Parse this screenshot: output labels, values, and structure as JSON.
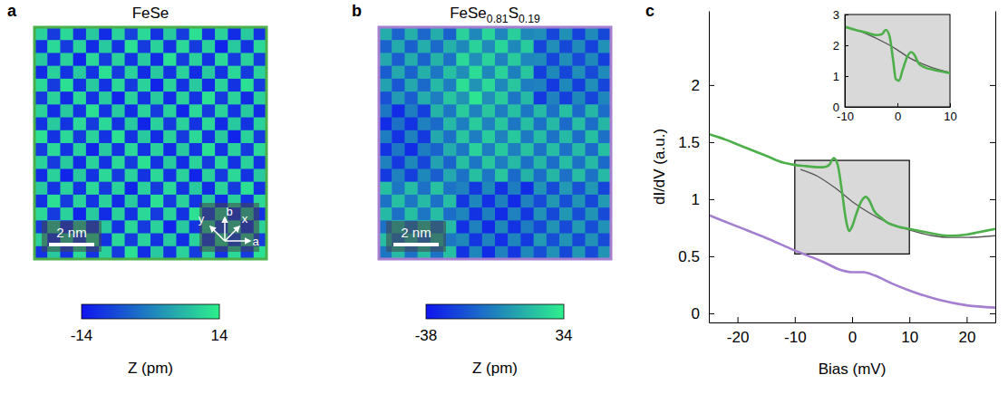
{
  "chart_data": [
    {
      "panel": "a",
      "type": "heatmap",
      "title": "FeSe",
      "color": "#4daf4a",
      "tick_labels": false,
      "scale_bar": "2 nm",
      "lattice_axes": [
        "x",
        "y",
        "a",
        "b"
      ],
      "colorbar": {
        "label": "Z (pm)",
        "range": [
          -14,
          14
        ],
        "ticks": [
          -14,
          14
        ]
      },
      "cells": [
        [
          10,
          -9,
          11,
          -10,
          9,
          -11,
          10,
          -8,
          11,
          -10,
          9,
          -9,
          12,
          -10,
          10,
          -11,
          9,
          -10
        ],
        [
          -10,
          11,
          -9,
          10,
          -11,
          9,
          -10,
          12,
          -9,
          10,
          -10,
          11,
          -9,
          10,
          -12,
          9,
          -10,
          11
        ],
        [
          9,
          -10,
          10,
          -12,
          11,
          -9,
          10,
          -10,
          9,
          -11,
          12,
          -9,
          10,
          -10,
          11,
          -9,
          10,
          -9
        ],
        [
          -11,
          10,
          -10,
          9,
          -10,
          12,
          -9,
          10,
          -11,
          9,
          -10,
          10,
          -11,
          9,
          -10,
          11,
          -9,
          10
        ],
        [
          11,
          -9,
          12,
          -10,
          9,
          -10,
          11,
          -9,
          10,
          -12,
          10,
          -10,
          9,
          -11,
          10,
          -10,
          12,
          -9
        ],
        [
          -9,
          10,
          -11,
          11,
          -10,
          9,
          -12,
          10,
          -10,
          9,
          -11,
          10,
          -10,
          12,
          -9,
          10,
          -11,
          10
        ],
        [
          10,
          -11,
          9,
          -10,
          12,
          -10,
          9,
          -11,
          10,
          -9,
          10,
          -12,
          11,
          -9,
          10,
          -10,
          9,
          -11
        ],
        [
          -10,
          9,
          -10,
          11,
          -9,
          11,
          -10,
          9,
          -12,
          10,
          -9,
          10,
          -10,
          11,
          -11,
          9,
          -10,
          10
        ],
        [
          12,
          -10,
          11,
          -9,
          10,
          -10,
          12,
          -10,
          9,
          -11,
          10,
          -9,
          11,
          -10,
          9,
          -12,
          10,
          -9
        ],
        [
          -9,
          11,
          -10,
          10,
          -12,
          9,
          -10,
          11,
          -10,
          10,
          -11,
          9,
          -10,
          12,
          -10,
          10,
          -9,
          11
        ],
        [
          10,
          -9,
          9,
          -11,
          10,
          -10,
          11,
          -9,
          12,
          -10,
          9,
          -11,
          10,
          -9,
          11,
          -10,
          10,
          -10
        ],
        [
          -11,
          10,
          -12,
          9,
          -10,
          11,
          -9,
          10,
          -10,
          11,
          -10,
          10,
          -12,
          10,
          -9,
          11,
          -10,
          9
        ],
        [
          9,
          -10,
          10,
          -10,
          11,
          -9,
          10,
          -12,
          10,
          -9,
          11,
          -10,
          9,
          -11,
          10,
          -9,
          12,
          -10
        ],
        [
          -10,
          12,
          -9,
          10,
          -10,
          10,
          -11,
          9,
          -10,
          12,
          -9,
          10,
          -10,
          9,
          -11,
          10,
          -10,
          11
        ],
        [
          11,
          -9,
          10,
          -12,
          9,
          -11,
          10,
          -10,
          11,
          -9,
          10,
          -10,
          12,
          -9,
          10,
          -11,
          9,
          -10
        ],
        [
          -9,
          10,
          -11,
          10,
          -10,
          9,
          -10,
          11,
          -9,
          10,
          -12,
          9,
          -10,
          11,
          -9,
          10,
          -11,
          10
        ],
        [
          10,
          -11,
          9,
          -9,
          12,
          -10,
          11,
          -9,
          10,
          -10,
          9,
          -11,
          10,
          -10,
          12,
          -9,
          10,
          -9
        ],
        [
          -10,
          9,
          -10,
          11,
          -10,
          10,
          -9,
          12,
          -11,
          9,
          -10,
          10,
          -9,
          10,
          -10,
          11,
          -9,
          12
        ]
      ]
    },
    {
      "panel": "b",
      "type": "heatmap",
      "title": "FeSe0.81S0.19",
      "color": "#a57fcf",
      "tick_labels": false,
      "scale_bar": "2 nm",
      "colorbar": {
        "label": "Z (pm)",
        "range": [
          -38,
          34
        ],
        "ticks": [
          -38,
          34
        ]
      },
      "cells": [
        [
          12,
          -12,
          13,
          -11,
          12,
          -13,
          24,
          0,
          25,
          -1,
          23,
          0,
          2,
          -22,
          3,
          -23,
          1,
          -21
        ],
        [
          -12,
          11,
          -13,
          12,
          -10,
          13,
          0,
          24,
          1,
          25,
          0,
          22,
          -22,
          2,
          -21,
          1,
          -23,
          3
        ],
        [
          10,
          -14,
          12,
          -12,
          14,
          -8,
          26,
          2,
          24,
          -2,
          22,
          -1,
          1,
          -22,
          2,
          -20,
          0,
          -24
        ],
        [
          -14,
          10,
          -12,
          13,
          -6,
          18,
          2,
          27,
          0,
          24,
          -3,
          20,
          -24,
          0,
          -22,
          2,
          -20,
          1
        ],
        [
          8,
          -16,
          10,
          -10,
          16,
          -4,
          28,
          4,
          26,
          0,
          20,
          -4,
          -2,
          -26,
          0,
          -24,
          2,
          -22
        ],
        [
          -18,
          6,
          -14,
          12,
          -4,
          20,
          4,
          30,
          2,
          22,
          -6,
          16,
          -26,
          -2,
          -24,
          0,
          -22,
          -1
        ],
        [
          -6,
          -30,
          -4,
          -24,
          14,
          -6,
          22,
          -2,
          20,
          -4,
          18,
          -6,
          16,
          -8,
          18,
          -10,
          15,
          -9
        ],
        [
          -30,
          -8,
          -28,
          -2,
          -10,
          16,
          -4,
          22,
          -2,
          20,
          -6,
          18,
          -8,
          16,
          -10,
          17,
          -9,
          15
        ],
        [
          -4,
          -28,
          -2,
          -26,
          10,
          -8,
          20,
          -4,
          22,
          -2,
          21,
          -5,
          17,
          -7,
          16,
          -9,
          18,
          -8
        ],
        [
          -28,
          -6,
          -30,
          -4,
          -12,
          12,
          -6,
          24,
          -4,
          21,
          -3,
          19,
          -7,
          17,
          -8,
          16,
          -10,
          18
        ],
        [
          -2,
          -26,
          0,
          -22,
          8,
          -12,
          18,
          -6,
          20,
          -4,
          16,
          -8,
          15,
          -9,
          17,
          -7,
          16,
          -10
        ],
        [
          -26,
          -2,
          -24,
          0,
          -14,
          10,
          -8,
          18,
          -6,
          20,
          -10,
          14,
          -9,
          15,
          -8,
          17,
          -7,
          16
        ],
        [
          18,
          -6,
          17,
          -8,
          19,
          -7,
          -2,
          -26,
          0,
          -28,
          -4,
          -30,
          4,
          -20,
          6,
          -18,
          5,
          -22
        ],
        [
          -7,
          18,
          -6,
          16,
          -8,
          17,
          -27,
          -1,
          -29,
          -3,
          -31,
          -2,
          -20,
          5,
          -19,
          4,
          -21,
          6
        ],
        [
          16,
          -8,
          18,
          -6,
          17,
          -9,
          -1,
          -28,
          -3,
          -30,
          -2,
          -27,
          3,
          -21,
          5,
          -19,
          4,
          -20
        ],
        [
          -8,
          17,
          -7,
          19,
          -6,
          16,
          -29,
          -2,
          -31,
          0,
          -28,
          -4,
          -21,
          4,
          -20,
          6,
          -19,
          3
        ],
        [
          17,
          -7,
          16,
          -9,
          18,
          -6,
          0,
          -27,
          -2,
          -29,
          -1,
          -26,
          6,
          -19,
          4,
          -21,
          3,
          -20
        ],
        [
          -6,
          16,
          -8,
          17,
          -7,
          18,
          -28,
          -1,
          -30,
          -2,
          -27,
          0,
          -19,
          3,
          -21,
          5,
          -20,
          4
        ]
      ]
    },
    {
      "panel": "c",
      "type": "line",
      "x_label": "Bias (mV)",
      "y_label": "dI/dV (a.u.)",
      "xlim": [
        -25,
        25
      ],
      "xticks": [
        -20,
        -10,
        0,
        10,
        20
      ],
      "ylim": [
        -0.08,
        2.65
      ],
      "yticks": [
        0,
        0.5,
        1,
        1.5,
        2
      ],
      "zoom_box": {
        "x": [
          -10,
          10
        ],
        "y": [
          0.52,
          1.34
        ]
      },
      "series": [
        {
          "color": "#555555",
          "x": [
            -9,
            -6,
            -3,
            0,
            3,
            6,
            10,
            14,
            17,
            20,
            25
          ],
          "values": [
            1.26,
            1.2,
            1.1,
            0.98,
            0.88,
            0.8,
            0.73,
            0.68,
            0.665,
            0.665,
            0.68
          ]
        },
        {
          "color": "#4daf4a",
          "x": [
            -25,
            -22,
            -20,
            -17,
            -15,
            -12,
            -10,
            -8,
            -6,
            -5,
            -4,
            -3.2,
            -2.5,
            -1.8,
            -1,
            -0.5,
            0,
            0.8,
            1.6,
            2.4,
            3,
            3.8,
            5,
            6,
            8,
            10,
            12,
            15,
            17,
            20,
            22,
            25
          ],
          "values": [
            1.57,
            1.52,
            1.48,
            1.42,
            1.38,
            1.32,
            1.3,
            1.29,
            1.28,
            1.28,
            1.3,
            1.36,
            1.3,
            1.08,
            0.8,
            0.72,
            0.76,
            0.88,
            0.98,
            1.02,
            0.99,
            0.9,
            0.84,
            0.8,
            0.76,
            0.74,
            0.72,
            0.69,
            0.68,
            0.69,
            0.71,
            0.74
          ]
        },
        {
          "color": "#a57fcf",
          "x": [
            -25,
            -20,
            -15,
            -10,
            -5,
            -2,
            0,
            2,
            4,
            7,
            10,
            15,
            20,
            25
          ],
          "values": [
            0.86,
            0.76,
            0.66,
            0.55,
            0.45,
            0.38,
            0.36,
            0.36,
            0.33,
            0.26,
            0.2,
            0.12,
            0.07,
            0.05
          ]
        }
      ],
      "inset": {
        "xlim": [
          -10,
          10
        ],
        "xticks": [
          -10,
          0,
          10
        ],
        "ylim": [
          0,
          3
        ],
        "yticks": [
          0,
          1,
          2,
          3
        ],
        "series": [
          {
            "color": "#555555",
            "x": [
              -10,
              -6,
              -2,
              0,
              2,
              5,
              8,
              10
            ],
            "values": [
              2.6,
              2.38,
              2.05,
              1.85,
              1.62,
              1.38,
              1.2,
              1.12
            ]
          },
          {
            "color": "#4daf4a",
            "x": [
              -10,
              -8,
              -6,
              -4,
              -3,
              -2.2,
              -1.5,
              -0.8,
              -0.3,
              0.3,
              1,
              1.8,
              2.6,
              3.2,
              4,
              5,
              7,
              10
            ],
            "values": [
              2.6,
              2.5,
              2.42,
              2.33,
              2.35,
              2.5,
              2.3,
              1.5,
              0.9,
              0.85,
              1.2,
              1.6,
              1.78,
              1.7,
              1.42,
              1.3,
              1.2,
              1.1
            ]
          }
        ]
      }
    }
  ]
}
